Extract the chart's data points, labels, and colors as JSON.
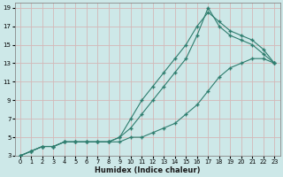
{
  "title": "",
  "xlabel": "Humidex (Indice chaleur)",
  "ylabel": "",
  "background_color": "#cde8e8",
  "grid_color": "#b8d8d8",
  "line_color": "#2e7d6e",
  "xlim": [
    -0.5,
    23.5
  ],
  "ylim": [
    3,
    19.5
  ],
  "xticks": [
    0,
    1,
    2,
    3,
    4,
    5,
    6,
    7,
    8,
    9,
    10,
    11,
    12,
    13,
    14,
    15,
    16,
    17,
    18,
    19,
    20,
    21,
    22,
    23
  ],
  "yticks": [
    3,
    5,
    7,
    9,
    11,
    13,
    15,
    17,
    19
  ],
  "line1_x": [
    0,
    1,
    2,
    3,
    4,
    5,
    6,
    7,
    8,
    9,
    10,
    11,
    12,
    13,
    14,
    15,
    16,
    17,
    18,
    19,
    20,
    21,
    22,
    23
  ],
  "line1_y": [
    3,
    3.5,
    4,
    4,
    4.5,
    4.5,
    4.5,
    4.5,
    4.5,
    4.5,
    5,
    5,
    5.5,
    6,
    6.5,
    7.5,
    8.5,
    10,
    11.5,
    12.5,
    13,
    13.5,
    13.5,
    13
  ],
  "line2_x": [
    0,
    1,
    2,
    3,
    4,
    5,
    6,
    7,
    8,
    9,
    10,
    11,
    12,
    13,
    14,
    15,
    16,
    17,
    18,
    19,
    20,
    21,
    22,
    23
  ],
  "line2_y": [
    3,
    3.5,
    4,
    4,
    4.5,
    4.5,
    4.5,
    4.5,
    4.5,
    5,
    6,
    7.5,
    9,
    10.5,
    12,
    13.5,
    16,
    19,
    17,
    16,
    15.5,
    15,
    14,
    13
  ],
  "line3_x": [
    0,
    1,
    2,
    3,
    4,
    5,
    6,
    7,
    8,
    9,
    10,
    11,
    12,
    13,
    14,
    15,
    16,
    17,
    18,
    19,
    20,
    21,
    22,
    23
  ],
  "line3_y": [
    3,
    3.5,
    4,
    4,
    4.5,
    4.5,
    4.5,
    4.5,
    4.5,
    5,
    7,
    9,
    10.5,
    12,
    13.5,
    15,
    17,
    18.5,
    17.5,
    16.5,
    16,
    15.5,
    14.5,
    13
  ]
}
